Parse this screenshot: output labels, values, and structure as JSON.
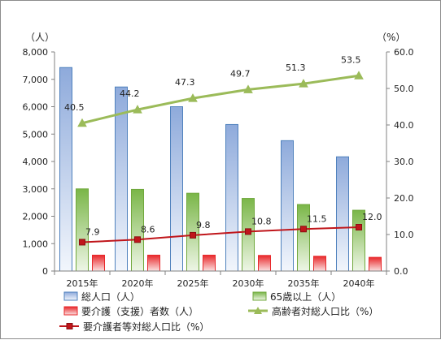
{
  "chart_data": {
    "type": "bar",
    "categories": [
      "2015年",
      "2020年",
      "2025年",
      "2030年",
      "2035年",
      "2040年"
    ],
    "left_axis": {
      "unit": "（人）",
      "ylim": [
        0,
        8000
      ],
      "ticks": [
        "0",
        "1,000",
        "2,000",
        "3,000",
        "4,000",
        "5,000",
        "6,000",
        "7,000",
        "8,000"
      ]
    },
    "right_axis": {
      "unit": "（%）",
      "ylim": [
        0,
        60
      ],
      "ticks": [
        "0.0",
        "10.0",
        "20.0",
        "30.0",
        "40.0",
        "50.0",
        "60.0"
      ]
    },
    "grid": false,
    "legend_position": "bottom",
    "series": [
      {
        "name": "総人口（人）",
        "kind": "bar",
        "axis": "left",
        "color": "#4f81bd",
        "values": [
          7430,
          6720,
          6000,
          5350,
          4760,
          4170
        ]
      },
      {
        "name": "65歳以上（人）",
        "kind": "bar",
        "axis": "left",
        "color": "#70a83c",
        "values": [
          3000,
          2980,
          2840,
          2650,
          2430,
          2220
        ]
      },
      {
        "name": "要介護（支援）者数（人）",
        "kind": "bar",
        "axis": "left",
        "color": "#e8282b",
        "values": [
          580,
          580,
          580,
          570,
          540,
          500
        ]
      },
      {
        "name": "高齢者対総人口比（%）",
        "kind": "line",
        "axis": "right",
        "color": "#9bbb59",
        "marker": "triangle",
        "values": [
          40.5,
          44.2,
          47.3,
          49.7,
          51.3,
          53.5
        ],
        "labels": [
          "40.5",
          "44.2",
          "47.3",
          "49.7",
          "51.3",
          "53.5"
        ]
      },
      {
        "name": "要介護者等対総人口比（%）",
        "kind": "line",
        "axis": "right",
        "color": "#c0161b",
        "marker": "square",
        "values": [
          7.9,
          8.6,
          9.8,
          10.8,
          11.5,
          12.0
        ],
        "labels": [
          "7.9",
          "8.6",
          "9.8",
          "10.8",
          "11.5",
          "12.0"
        ]
      }
    ]
  }
}
